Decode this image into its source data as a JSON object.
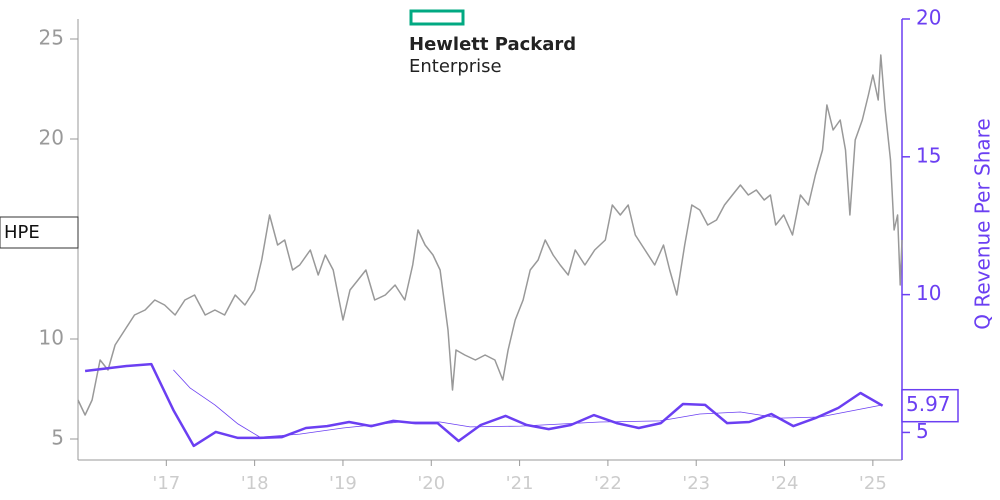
{
  "chart_data": {
    "type": "line",
    "logo": {
      "line1": "Hewlett Packard",
      "line2": "Enterprise",
      "color": "#01a982"
    },
    "y2label": "Q Revenue Per Share",
    "xlim": [
      2016,
      2025.33
    ],
    "xticks": [
      {
        "value": 2017,
        "label": "'17"
      },
      {
        "value": 2018,
        "label": "'18"
      },
      {
        "value": 2019,
        "label": "'19"
      },
      {
        "value": 2020,
        "label": "'20"
      },
      {
        "value": 2021,
        "label": "'21"
      },
      {
        "value": 2022,
        "label": "'22"
      },
      {
        "value": 2023,
        "label": "'23"
      },
      {
        "value": 2024,
        "label": "'24"
      },
      {
        "value": 2025,
        "label": "'25"
      }
    ],
    "ylim": [
      3.95,
      26
    ],
    "yticks": [
      5,
      10,
      20,
      25
    ],
    "y2lim": [
      4,
      20
    ],
    "y2ticks": [
      5,
      10,
      15,
      20
    ],
    "series": [
      {
        "name": "HPE",
        "color": "#999999",
        "width": 1.5,
        "x": [
          2016.0,
          2016.08,
          2016.16,
          2016.25,
          2016.34,
          2016.42,
          2016.53,
          2016.64,
          2016.76,
          2016.87,
          2016.98,
          2017.1,
          2017.21,
          2017.32,
          2017.44,
          2017.55,
          2017.66,
          2017.78,
          2017.89,
          2018.0,
          2018.08,
          2018.17,
          2018.26,
          2018.34,
          2018.43,
          2018.51,
          2018.63,
          2018.72,
          2018.8,
          2018.89,
          2019.0,
          2019.08,
          2019.17,
          2019.26,
          2019.36,
          2019.48,
          2019.59,
          2019.7,
          2019.79,
          2019.85,
          2019.93,
          2020.02,
          2020.1,
          2020.19,
          2020.24,
          2020.28,
          2020.38,
          2020.5,
          2020.61,
          2020.72,
          2020.81,
          2020.87,
          2020.95,
          2021.04,
          2021.12,
          2021.21,
          2021.29,
          2021.38,
          2021.46,
          2021.55,
          2021.63,
          2021.74,
          2021.85,
          2021.97,
          2022.05,
          2022.14,
          2022.23,
          2022.31,
          2022.42,
          2022.53,
          2022.63,
          2022.7,
          2022.78,
          2022.87,
          2022.95,
          2023.04,
          2023.13,
          2023.23,
          2023.32,
          2023.41,
          2023.5,
          2023.59,
          2023.68,
          2023.77,
          2023.84,
          2023.9,
          2023.99,
          2024.09,
          2024.18,
          2024.27,
          2024.35,
          2024.43,
          2024.48,
          2024.55,
          2024.63,
          2024.69,
          2024.74,
          2024.8,
          2024.88,
          2024.95,
          2025.0,
          2025.06,
          2025.09,
          2025.14,
          2025.2,
          2025.24,
          2025.28,
          2025.31,
          2025.33
        ],
        "values": [
          6.95,
          6.2,
          6.95,
          8.95,
          8.45,
          9.7,
          10.45,
          11.2,
          11.45,
          11.95,
          11.7,
          11.2,
          11.95,
          12.2,
          11.2,
          11.45,
          11.2,
          12.2,
          11.7,
          12.45,
          13.95,
          16.2,
          14.7,
          14.95,
          13.45,
          13.7,
          14.45,
          13.2,
          14.2,
          13.45,
          10.95,
          12.45,
          12.95,
          13.45,
          11.95,
          12.2,
          12.7,
          11.95,
          13.7,
          15.45,
          14.7,
          14.2,
          13.45,
          10.45,
          7.45,
          9.45,
          9.2,
          8.95,
          9.2,
          8.95,
          7.95,
          9.45,
          10.95,
          11.95,
          13.45,
          13.95,
          14.95,
          14.2,
          13.7,
          13.2,
          14.45,
          13.7,
          14.45,
          14.95,
          16.7,
          16.2,
          16.7,
          15.2,
          14.45,
          13.7,
          14.7,
          13.45,
          12.2,
          14.7,
          16.7,
          16.45,
          15.7,
          15.95,
          16.7,
          17.2,
          17.7,
          17.2,
          17.45,
          16.95,
          17.2,
          15.7,
          16.2,
          15.2,
          17.2,
          16.7,
          18.2,
          19.45,
          21.7,
          20.45,
          20.95,
          19.45,
          16.2,
          19.95,
          20.95,
          22.2,
          23.2,
          21.95,
          24.2,
          21.45,
          18.95,
          15.45,
          16.2,
          12.7,
          14.95
        ]
      },
      {
        "color": "#6b3ff2",
        "width": 2.5,
        "axis": "y2",
        "x": [
          2016.08,
          2016.55,
          2016.83,
          2017.08,
          2017.31,
          2017.56,
          2017.81,
          2018.06,
          2018.31,
          2018.58,
          2018.82,
          2019.07,
          2019.32,
          2019.57,
          2019.82,
          2020.07,
          2020.31,
          2020.56,
          2020.84,
          2021.08,
          2021.33,
          2021.58,
          2021.84,
          2022.1,
          2022.35,
          2022.6,
          2022.85,
          2023.1,
          2023.35,
          2023.6,
          2023.85,
          2024.1,
          2024.35,
          2024.61,
          2024.86,
          2025.11
        ],
        "values": [
          7.23,
          7.41,
          7.48,
          5.81,
          4.51,
          5.02,
          4.8,
          4.8,
          4.83,
          5.16,
          5.23,
          5.38,
          5.23,
          5.42,
          5.34,
          5.34,
          4.69,
          5.27,
          5.6,
          5.27,
          5.12,
          5.27,
          5.63,
          5.34,
          5.16,
          5.34,
          6.03,
          6.0,
          5.34,
          5.38,
          5.67,
          5.23,
          5.52,
          5.89,
          6.43,
          5.97
        ]
      },
      {
        "color": "#6b3ff2",
        "width": 0.8,
        "axis": "y2",
        "x": [
          2017.08,
          2017.27,
          2017.55,
          2017.81,
          2018.06,
          2018.51,
          2019.0,
          2019.65,
          2020.1,
          2020.44,
          2021.01,
          2021.91,
          2022.59,
          2023.04,
          2023.5,
          2023.95,
          2024.4,
          2025.11
        ],
        "values": [
          7.27,
          6.61,
          6.0,
          5.31,
          4.83,
          4.94,
          5.16,
          5.38,
          5.38,
          5.2,
          5.23,
          5.38,
          5.42,
          5.67,
          5.74,
          5.52,
          5.56,
          6.0
        ]
      }
    ]
  }
}
